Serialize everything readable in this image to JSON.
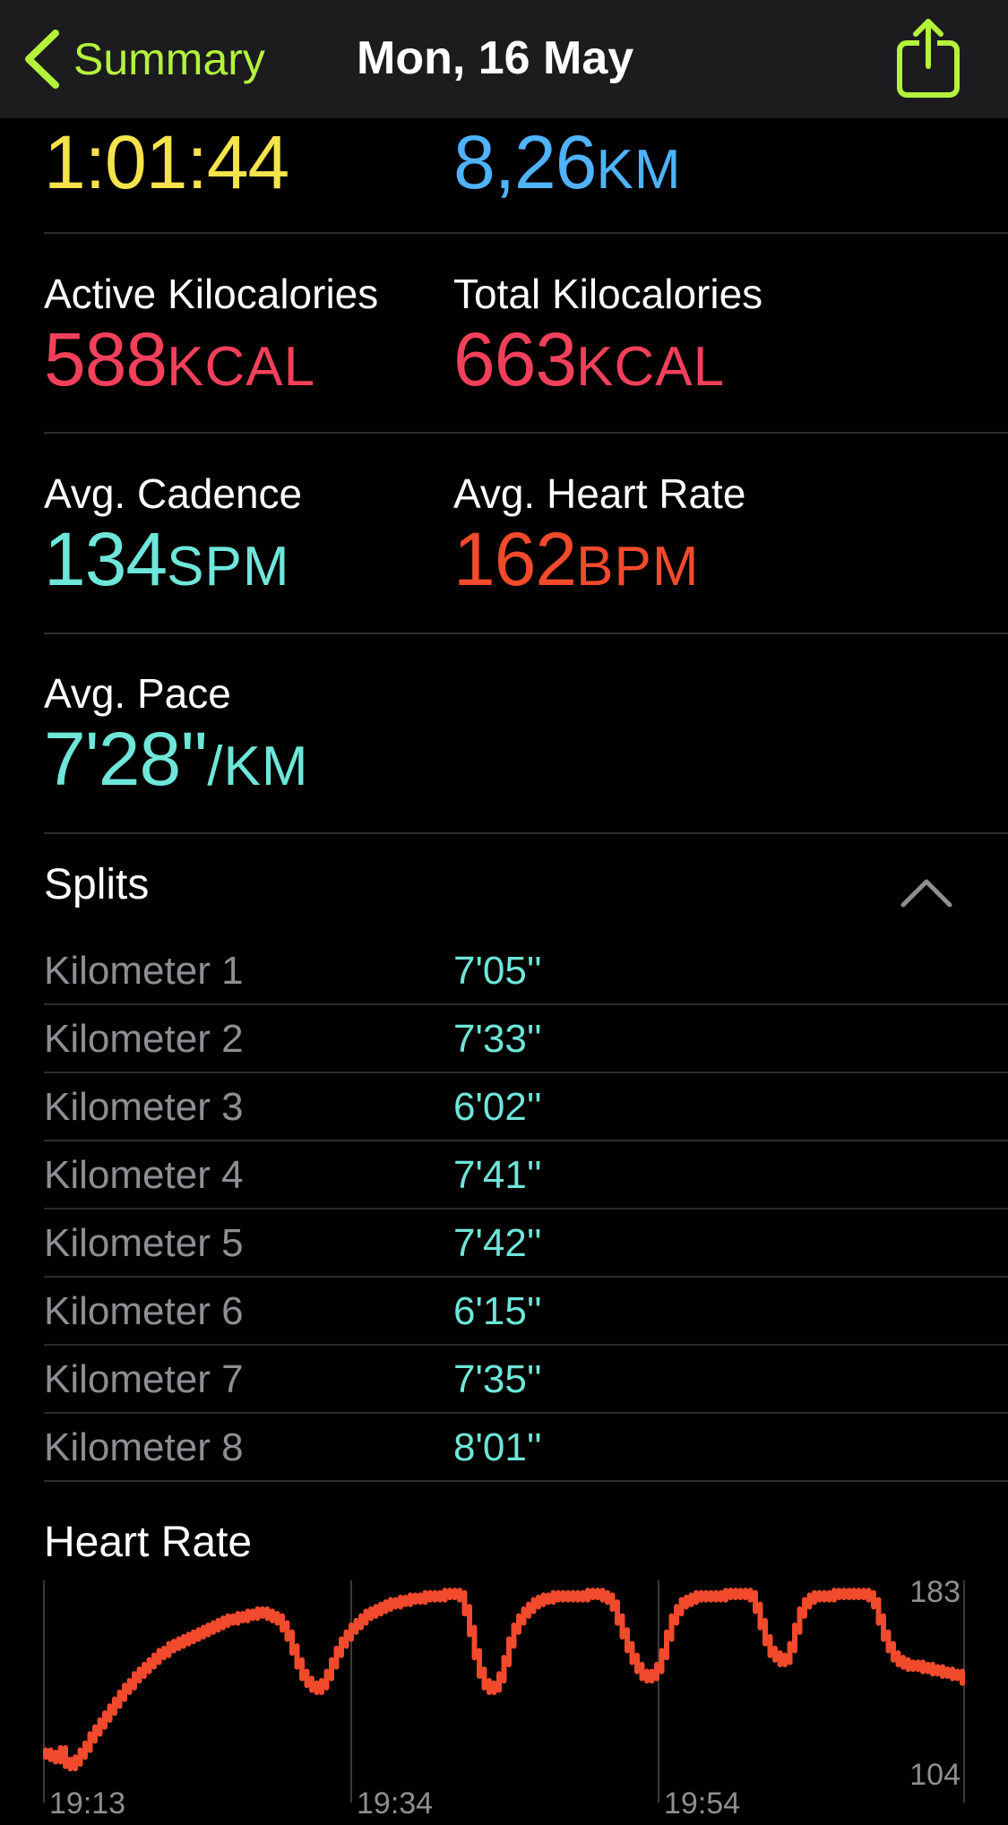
{
  "colors": {
    "accent": "#b5f23c",
    "time": "#f5e34b",
    "distance": "#4fb3ff",
    "calories": "#f2405b",
    "cadence": "#6ee6d9",
    "heart": "#f24a2c",
    "pace": "#6ee6d9"
  },
  "nav": {
    "back_label": "Summary",
    "title": "Mon, 16 May",
    "back_icon": "chevron-left-icon",
    "share_icon": "share-icon"
  },
  "metrics": {
    "time": {
      "value": "1:01:44"
    },
    "distance": {
      "value": "8,26",
      "unit": "KM"
    },
    "active_kcal": {
      "label": "Active Kilocalories",
      "value": "588",
      "unit": "KCAL"
    },
    "total_kcal": {
      "label": "Total Kilocalories",
      "value": "663",
      "unit": "KCAL"
    },
    "cadence": {
      "label": "Avg. Cadence",
      "value": "134",
      "unit": "SPM"
    },
    "heart_rate": {
      "label": "Avg. Heart Rate",
      "value": "162",
      "unit": "BPM"
    },
    "pace": {
      "label": "Avg. Pace",
      "value": "7'28''",
      "unit": "/KM"
    }
  },
  "splits": {
    "title": "Splits",
    "collapse_icon": "chevron-up-icon",
    "rows": [
      {
        "label": "Kilometer 1",
        "value": "7'05''"
      },
      {
        "label": "Kilometer 2",
        "value": "7'33''"
      },
      {
        "label": "Kilometer 3",
        "value": "6'02''"
      },
      {
        "label": "Kilometer 4",
        "value": "7'41''"
      },
      {
        "label": "Kilometer 5",
        "value": "7'42''"
      },
      {
        "label": "Kilometer 6",
        "value": "6'15''"
      },
      {
        "label": "Kilometer 7",
        "value": "7'35''"
      },
      {
        "label": "Kilometer 8",
        "value": "8'01''"
      }
    ]
  },
  "heart_rate_chart": {
    "title": "Heart Rate"
  },
  "chart_data": {
    "type": "scatter",
    "title": "Heart Rate",
    "xlabel": "",
    "ylabel": "",
    "x_tick_labels": [
      "19:13",
      "19:34",
      "19:54"
    ],
    "y_tick_labels": [
      "183",
      "104"
    ],
    "ylim": [
      104,
      183
    ],
    "grid": true,
    "series": [
      {
        "values": [
          112,
          111,
          110,
          113,
          108,
          107,
          109,
          112,
          115,
          119,
          122,
          125,
          128,
          131,
          134,
          137,
          140,
          142,
          145,
          147,
          149,
          151,
          153,
          155,
          156,
          158,
          159,
          160,
          161,
          162,
          163,
          164,
          165,
          166,
          167,
          168,
          169,
          170,
          170,
          171,
          171,
          172,
          172,
          173,
          173,
          172,
          171,
          170,
          167,
          163,
          157,
          151,
          146,
          143,
          141,
          140,
          142,
          146,
          151,
          156,
          160,
          163,
          166,
          168,
          170,
          172,
          173,
          174,
          175,
          176,
          177,
          177,
          178,
          178,
          179,
          179,
          179,
          180,
          180,
          180,
          180,
          181,
          181,
          181,
          180,
          174,
          165,
          155,
          147,
          142,
          140,
          141,
          145,
          152,
          160,
          166,
          170,
          173,
          175,
          177,
          178,
          179,
          179,
          180,
          180,
          180,
          180,
          180,
          180,
          180,
          181,
          181,
          181,
          180,
          179,
          176,
          170,
          164,
          158,
          153,
          149,
          146,
          145,
          146,
          149,
          155,
          163,
          170,
          174,
          177,
          178,
          179,
          180,
          180,
          180,
          180,
          180,
          180,
          181,
          181,
          181,
          181,
          181,
          180,
          175,
          168,
          161,
          156,
          154,
          152,
          153,
          158,
          166,
          173,
          177,
          179,
          180,
          180,
          180,
          180,
          181,
          181,
          181,
          181,
          181,
          181,
          181,
          180,
          177,
          170,
          163,
          158,
          154,
          152,
          151,
          150,
          150,
          150,
          149,
          149,
          148,
          148,
          147,
          147,
          146,
          146,
          144
        ]
      }
    ]
  }
}
